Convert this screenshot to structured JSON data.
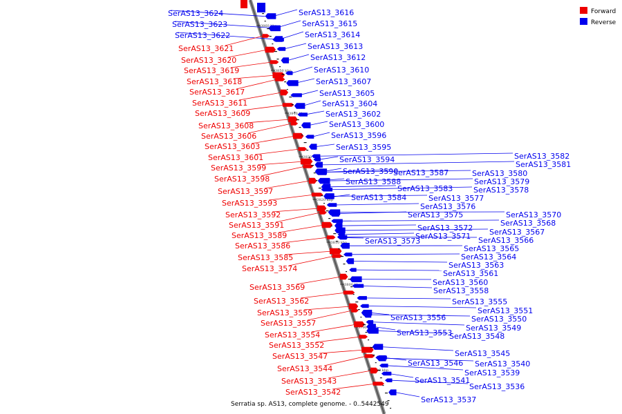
{
  "title": "Serratia sp. AS13, complete genome. - 0..5442549",
  "legend": [
    {
      "label": "Forward",
      "color": "#ee0000"
    },
    {
      "label": "Reverse",
      "color": "#0000ee"
    }
  ],
  "ticks": [
    "3860 kbp",
    "3850 kbp",
    "3840 kbp",
    "3830 kbp",
    "3820 kbp",
    "3810 kbp",
    "3800 kbp",
    "3790 kbp",
    "3780 kbp"
  ],
  "reverse_genes": [
    "SerAS13_3624",
    "SerAS13_3623",
    "SerAS13_3622",
    "SerAS13_3616",
    "SerAS13_3615",
    "SerAS13_3614",
    "SerAS13_3613",
    "SerAS13_3612",
    "SerAS13_3610",
    "SerAS13_3607",
    "SerAS13_3605",
    "SerAS13_3604",
    "SerAS13_3602",
    "SerAS13_3600",
    "SerAS13_3596",
    "SerAS13_3595",
    "SerAS13_3594",
    "SerAS13_3590",
    "SerAS13_3588",
    "SerAS13_3587",
    "SerAS13_3584",
    "SerAS13_3583",
    "SerAS13_3582",
    "SerAS13_3581",
    "SerAS13_3580",
    "SerAS13_3579",
    "SerAS13_3578",
    "SerAS13_3577",
    "SerAS13_3576",
    "SerAS13_3575",
    "SerAS13_3573",
    "SerAS13_3572",
    "SerAS13_3571",
    "SerAS13_3570",
    "SerAS13_3568",
    "SerAS13_3567",
    "SerAS13_3566",
    "SerAS13_3565",
    "SerAS13_3564",
    "SerAS13_3563",
    "SerAS13_3561",
    "SerAS13_3560",
    "SerAS13_3558",
    "SerAS13_3556",
    "SerAS13_3555",
    "SerAS13_3553",
    "SerAS13_3551",
    "SerAS13_3550",
    "SerAS13_3549",
    "SerAS13_3548",
    "SerAS13_3546",
    "SerAS13_3545",
    "SerAS13_3541",
    "SerAS13_3540",
    "SerAS13_3539",
    "SerAS13_3537",
    "SerAS13_3536"
  ],
  "forward_genes": [
    "SerAS13_3621",
    "SerAS13_3620",
    "SerAS13_3619",
    "SerAS13_3618",
    "SerAS13_3617",
    "SerAS13_3611",
    "SerAS13_3609",
    "SerAS13_3608",
    "SerAS13_3606",
    "SerAS13_3603",
    "SerAS13_3601",
    "SerAS13_3599",
    "SerAS13_3598",
    "SerAS13_3597",
    "SerAS13_3593",
    "SerAS13_3592",
    "SerAS13_3591",
    "SerAS13_3589",
    "SerAS13_3586",
    "SerAS13_3585",
    "SerAS13_3574",
    "SerAS13_3569",
    "SerAS13_3562",
    "SerAS13_3559",
    "SerAS13_3557",
    "SerAS13_3554",
    "SerAS13_3552",
    "SerAS13_3547",
    "SerAS13_3544",
    "SerAS13_3543",
    "SerAS13_3542"
  ]
}
